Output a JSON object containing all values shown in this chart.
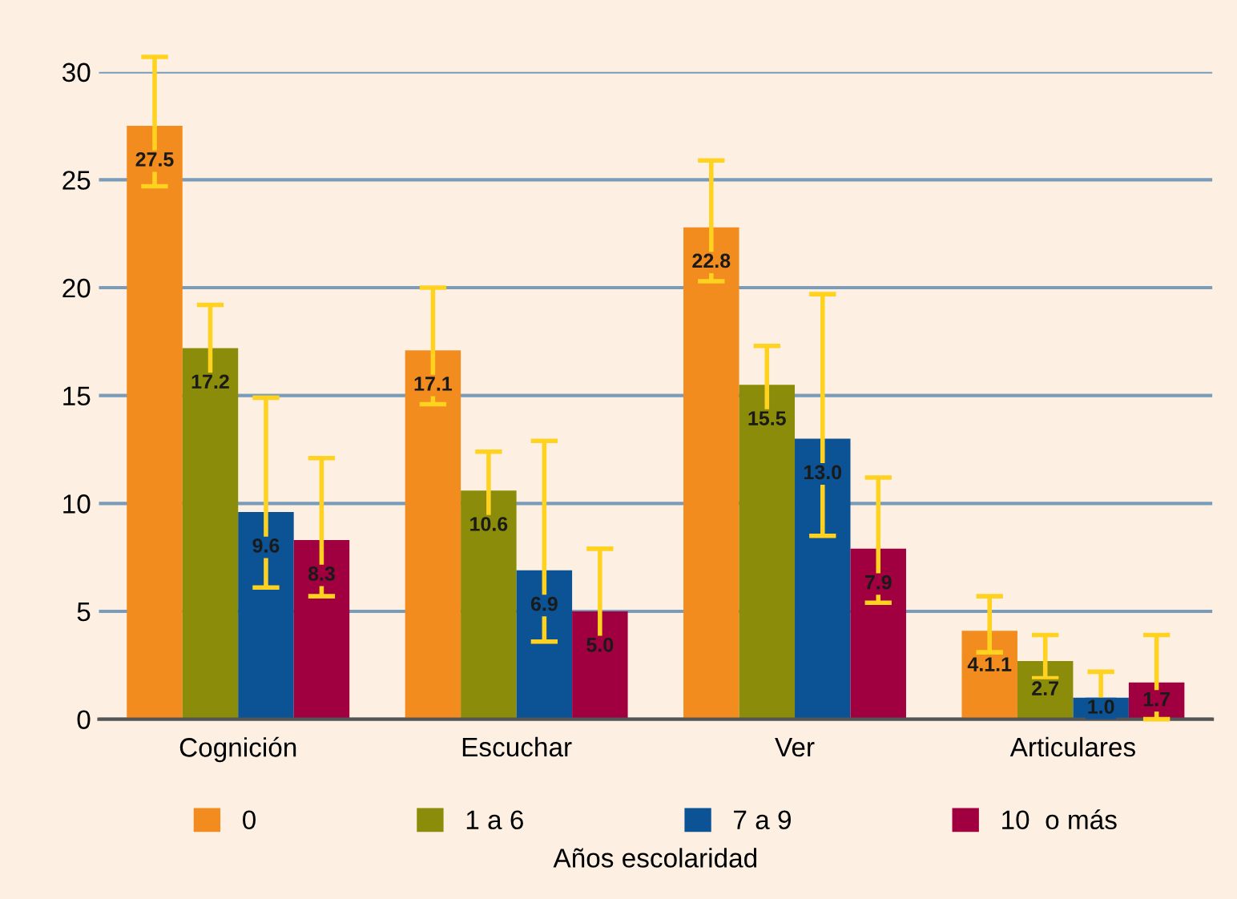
{
  "chart_data": {
    "type": "bar",
    "categories": [
      "Cognición",
      "Escuchar",
      "Ver",
      "Articulares"
    ],
    "series": [
      {
        "name": "0",
        "color": "#f28c1e",
        "values": [
          27.5,
          17.1,
          22.8,
          4.1
        ],
        "value_labels": [
          "27.5",
          "17.1",
          "22.8",
          "4.1.1"
        ],
        "errors": [
          [
            24.7,
            30.7
          ],
          [
            14.6,
            20.0
          ],
          [
            20.3,
            25.9
          ],
          [
            3.1,
            5.7
          ]
        ]
      },
      {
        "name": "1 a 6",
        "color": "#8a8c0a",
        "values": [
          17.2,
          10.6,
          15.5,
          2.7
        ],
        "value_labels": [
          "17.2",
          "10.6",
          "15.5",
          "2.7"
        ],
        "errors": [
          [
            15.6,
            19.2
          ],
          [
            9.2,
            12.4
          ],
          [
            13.8,
            17.3
          ],
          [
            1.9,
            3.9
          ]
        ]
      },
      {
        "name": "7 a 9",
        "color": "#0b5394",
        "values": [
          9.6,
          6.9,
          13.0,
          1.0
        ],
        "value_labels": [
          "9.6",
          "6.9",
          "13.0",
          "1.0"
        ],
        "errors": [
          [
            6.1,
            14.9
          ],
          [
            3.6,
            12.9
          ],
          [
            8.5,
            19.7
          ],
          [
            0.4,
            2.2
          ]
        ]
      },
      {
        "name": "10  o más",
        "color": "#a0003f",
        "values": [
          8.3,
          5.0,
          7.9,
          1.7
        ],
        "value_labels": [
          "8.3",
          "5.0",
          "7.9",
          "1.7"
        ],
        "errors": [
          [
            5.7,
            12.1
          ],
          [
            3.1,
            7.9
          ],
          [
            5.4,
            11.2
          ],
          [
            0.0,
            3.9
          ]
        ]
      }
    ],
    "legend_title": "Años escolaridad",
    "legend": "bottom",
    "grid": "y",
    "ylim": [
      0,
      30
    ],
    "yticks": [
      0,
      5,
      10,
      15,
      20,
      25,
      30
    ]
  }
}
